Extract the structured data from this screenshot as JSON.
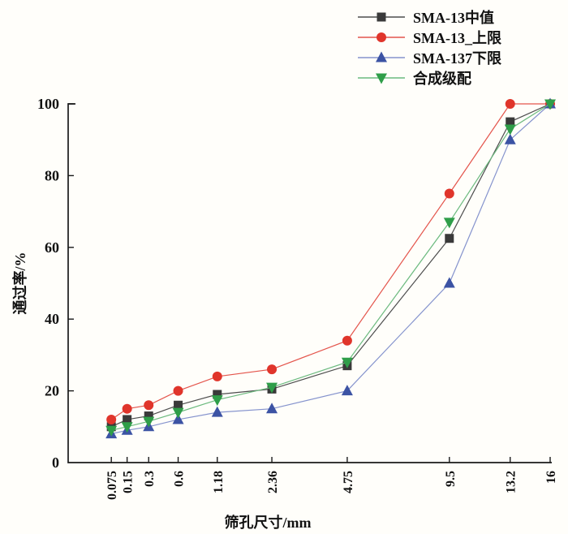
{
  "chart_data": {
    "type": "line",
    "title": "",
    "xlabel": "筛孔尺寸/mm",
    "ylabel": "通过率/%",
    "x_scale": "gradation power 0.45",
    "x_sieve_sizes_mm": [
      0.075,
      0.15,
      0.3,
      0.6,
      1.18,
      2.36,
      4.75,
      9.5,
      13.2,
      16
    ],
    "x_tick_labels": [
      "0.075",
      "0.15",
      "0.3",
      "0.6",
      "1.18",
      "2.36",
      "4.75",
      "9.5",
      "13.2",
      "16"
    ],
    "ylim": [
      0,
      100
    ],
    "yticks": [
      0,
      20,
      40,
      60,
      80,
      100
    ],
    "grid": false,
    "legend_position": "top-right",
    "axis_color": "#1a1a1a",
    "series": [
      {
        "name": "SMA-13中值",
        "marker": "square",
        "color": "#3a3a3a",
        "line_color": "#4d4d4d",
        "values": [
          10,
          12,
          13,
          16,
          19,
          20.5,
          27,
          62.5,
          95,
          100
        ]
      },
      {
        "name": "SMA-13_上限",
        "marker": "circle",
        "color": "#e0352b",
        "line_color": "#e4554c",
        "values": [
          12,
          15,
          16,
          20,
          24,
          26,
          34,
          75,
          100,
          100
        ]
      },
      {
        "name": "SMA-137下限",
        "marker": "triangle-up",
        "color": "#3c53a4",
        "line_color": "#8593cd",
        "values": [
          8,
          9,
          10,
          12,
          14,
          15,
          20,
          50,
          90,
          100
        ]
      },
      {
        "name": "合成级配",
        "marker": "triangle-down",
        "color": "#2f9e49",
        "line_color": "#6cba7f",
        "values": [
          9,
          10,
          11.5,
          14,
          17.5,
          21,
          28,
          67,
          93,
          100
        ]
      }
    ]
  }
}
